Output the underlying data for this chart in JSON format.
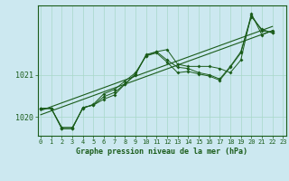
{
  "title": "Graphe pression niveau de la mer (hPa)",
  "bg_color": "#cce8f0",
  "line_color": "#1a5c1a",
  "grid_color": "#a8d8c8",
  "x_ticks": [
    0,
    1,
    2,
    3,
    4,
    5,
    6,
    7,
    8,
    9,
    10,
    11,
    12,
    13,
    14,
    15,
    16,
    17,
    18,
    19,
    20,
    21,
    22,
    23
  ],
  "ylim": [
    1019.55,
    1022.65
  ],
  "yticks": [
    1020,
    1021
  ],
  "series1": [
    1020.2,
    1020.2,
    1019.75,
    1019.75,
    1020.2,
    1020.3,
    1020.55,
    1020.65,
    1020.85,
    1021.05,
    1021.45,
    1021.55,
    1021.6,
    1021.25,
    1021.2,
    1021.2,
    1021.2,
    1021.15,
    1021.05,
    1021.35,
    1022.45,
    1021.95,
    1022.05
  ],
  "series2": [
    1020.2,
    1020.2,
    1019.72,
    1019.72,
    1020.22,
    1020.28,
    1020.48,
    1020.58,
    1020.78,
    1021.0,
    1021.48,
    1021.55,
    1021.35,
    1021.18,
    1021.15,
    1021.05,
    1021.0,
    1020.9,
    1021.2,
    1021.55,
    1022.42,
    1022.05,
    1022.0
  ],
  "series3": [
    1020.2,
    1020.2,
    1019.72,
    1019.72,
    1020.22,
    1020.28,
    1020.42,
    1020.52,
    1020.78,
    1021.02,
    1021.45,
    1021.52,
    1021.3,
    1021.05,
    1021.08,
    1021.02,
    1020.97,
    1020.87,
    1021.18,
    1021.52,
    1022.38,
    1022.08,
    1022.0
  ],
  "trend1_x": [
    0,
    22
  ],
  "trend1_y": [
    1020.05,
    1022.05
  ],
  "trend2_x": [
    0,
    22
  ],
  "trend2_y": [
    1020.15,
    1022.15
  ]
}
